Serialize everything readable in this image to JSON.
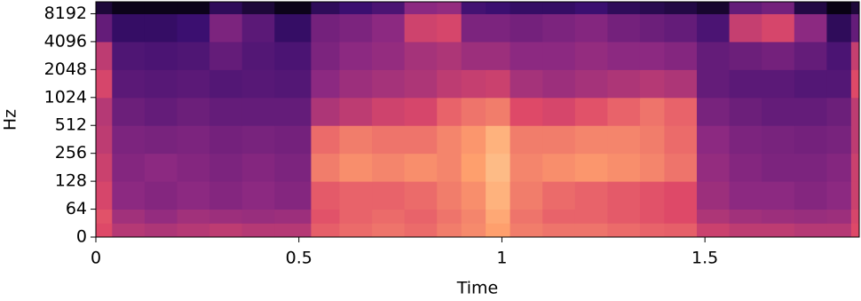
{
  "chart_data": {
    "type": "heatmap",
    "xlabel": "Time",
    "ylabel": "Hz",
    "x": [
      0,
      0.04,
      0.12,
      0.2,
      0.28,
      0.36,
      0.44,
      0.53,
      0.6,
      0.68,
      0.76,
      0.84,
      0.9,
      0.96,
      1.02,
      1.1,
      1.18,
      1.26,
      1.34,
      1.4,
      1.48,
      1.56,
      1.64,
      1.72,
      1.8,
      1.86,
      1.88
    ],
    "y": [
      0,
      32,
      64,
      128,
      256,
      512,
      1024,
      2048,
      4096,
      8192,
      11025
    ],
    "values": [
      [
        60,
        50,
        48,
        50,
        52,
        50,
        50,
        65,
        68,
        70,
        68,
        72,
        75,
        80,
        72,
        70,
        70,
        68,
        66,
        65,
        55,
        52,
        52,
        50,
        50,
        60
      ],
      [
        62,
        45,
        42,
        45,
        44,
        43,
        44,
        62,
        66,
        68,
        66,
        70,
        74,
        82,
        70,
        66,
        66,
        64,
        62,
        60,
        48,
        45,
        44,
        43,
        44,
        58
      ],
      [
        58,
        40,
        38,
        40,
        38,
        40,
        38,
        64,
        66,
        66,
        68,
        72,
        76,
        84,
        72,
        68,
        66,
        64,
        62,
        60,
        44,
        40,
        40,
        38,
        40,
        55
      ],
      [
        55,
        38,
        40,
        38,
        36,
        38,
        36,
        72,
        76,
        74,
        76,
        74,
        80,
        86,
        74,
        76,
        78,
        76,
        74,
        70,
        42,
        38,
        36,
        36,
        38,
        55
      ],
      [
        52,
        36,
        35,
        36,
        34,
        35,
        34,
        68,
        72,
        70,
        70,
        74,
        78,
        84,
        72,
        72,
        74,
        74,
        72,
        68,
        40,
        36,
        35,
        34,
        35,
        52
      ],
      [
        50,
        32,
        30,
        32,
        30,
        30,
        30,
        48,
        52,
        56,
        58,
        66,
        70,
        72,
        60,
        58,
        62,
        66,
        70,
        66,
        35,
        32,
        30,
        30,
        32,
        52
      ],
      [
        58,
        28,
        27,
        28,
        26,
        27,
        26,
        40,
        44,
        46,
        48,
        52,
        54,
        55,
        46,
        44,
        46,
        48,
        50,
        48,
        30,
        28,
        28,
        26,
        26,
        60
      ],
      [
        52,
        25,
        24,
        25,
        30,
        26,
        24,
        36,
        40,
        42,
        46,
        48,
        44,
        44,
        40,
        40,
        42,
        40,
        40,
        38,
        30,
        32,
        34,
        30,
        24,
        54
      ],
      [
        30,
        18,
        18,
        20,
        36,
        28,
        18,
        34,
        36,
        40,
        56,
        58,
        36,
        36,
        34,
        36,
        38,
        34,
        32,
        30,
        24,
        54,
        58,
        40,
        16,
        30
      ],
      [
        10,
        4,
        4,
        4,
        16,
        10,
        4,
        16,
        20,
        24,
        40,
        42,
        22,
        20,
        18,
        18,
        20,
        16,
        14,
        12,
        8,
        30,
        34,
        12,
        3,
        10
      ]
    ],
    "zlim": [
      0,
      100
    ],
    "colormap": [
      "#000004",
      "#3b0f70",
      "#8c2981",
      "#de4968",
      "#fe9f6d",
      "#fcfdbf"
    ],
    "xlim": [
      0,
      1.88
    ],
    "xticks": [
      0,
      0.5,
      1,
      1.5
    ],
    "ylim": [
      0,
      11025
    ],
    "yscale": "symlog",
    "ybase": 2,
    "ylinthresh": 64,
    "yticks": [
      0,
      64,
      128,
      256,
      512,
      1024,
      2048,
      4096,
      8192
    ]
  }
}
